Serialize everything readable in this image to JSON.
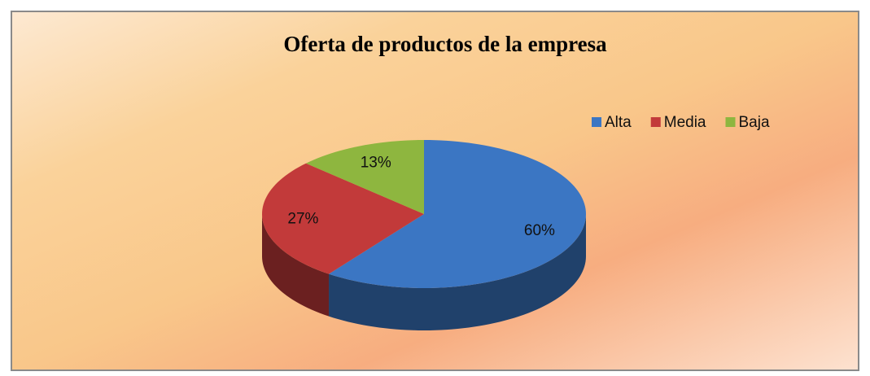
{
  "chart_data": {
    "type": "pie",
    "title": "Oferta de productos de la empresa",
    "categories": [
      "Alta",
      "Media",
      "Baja"
    ],
    "values": [
      60,
      27,
      13
    ],
    "value_labels": [
      "60%",
      "27%",
      "13%"
    ],
    "colors": [
      "#3b76c3",
      "#c23a3a",
      "#8eb63f"
    ],
    "legend": "top-right"
  }
}
